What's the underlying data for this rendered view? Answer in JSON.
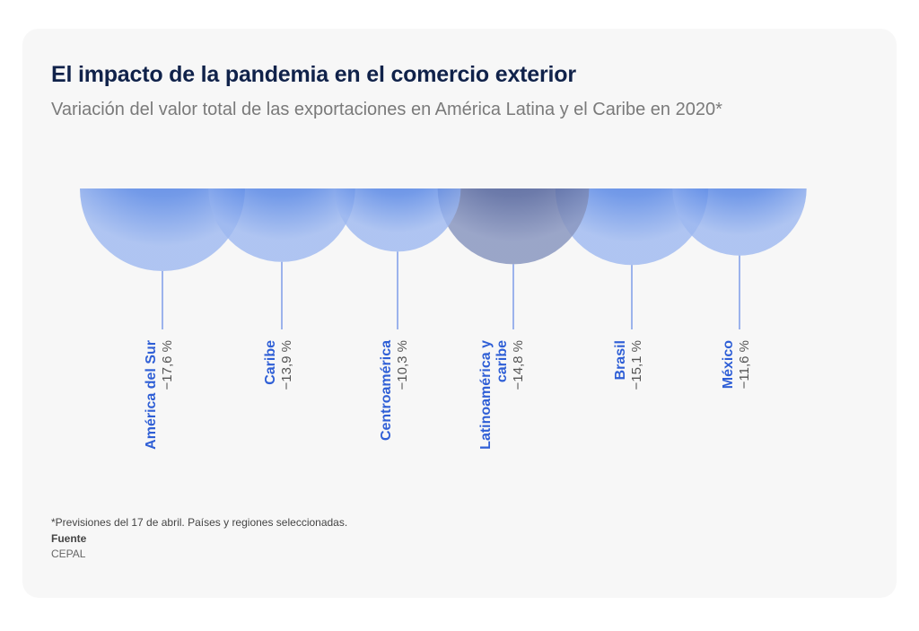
{
  "header": {
    "title": "El impacto de la pandemia en el comercio exterior",
    "subtitle": "Variación del valor total de las exportaciones en América Latina y el Caribe en 2020*"
  },
  "footer": {
    "note": "*Previsiones del 17 de abril. Países y regiones seleccionadas.",
    "source_label": "Fuente",
    "source_value": "CEPAL"
  },
  "colors": {
    "circle": "#4f7fe0",
    "highlight": "#55649a",
    "label": "#2f5fd6",
    "value": "#555555",
    "line": "#5f86e4"
  },
  "chart_data": {
    "type": "bubble",
    "title": "El impacto de la pandemia en el comercio exterior",
    "subtitle": "Variación del valor total de las exportaciones en América Latina y el Caribe en 2020*",
    "unit": "%",
    "categories": [
      {
        "name": [
          "América del Sur"
        ],
        "value": -17.6,
        "value_label": "−17,6 %",
        "highlight": false
      },
      {
        "name": [
          "Caribe"
        ],
        "value": -13.9,
        "value_label": "−13,9 %",
        "highlight": false
      },
      {
        "name": [
          "Centroamérica"
        ],
        "value": -10.3,
        "value_label": "−10,3 %",
        "highlight": false
      },
      {
        "name": [
          "Latinoamérica y",
          "caribe"
        ],
        "value": -14.8,
        "value_label": "−14,8 %",
        "highlight": true
      },
      {
        "name": [
          "Brasil"
        ],
        "value": -15.1,
        "value_label": "−15,1 %",
        "highlight": false
      },
      {
        "name": [
          "México"
        ],
        "value": -11.6,
        "value_label": "−11,6 %",
        "highlight": false
      }
    ]
  }
}
